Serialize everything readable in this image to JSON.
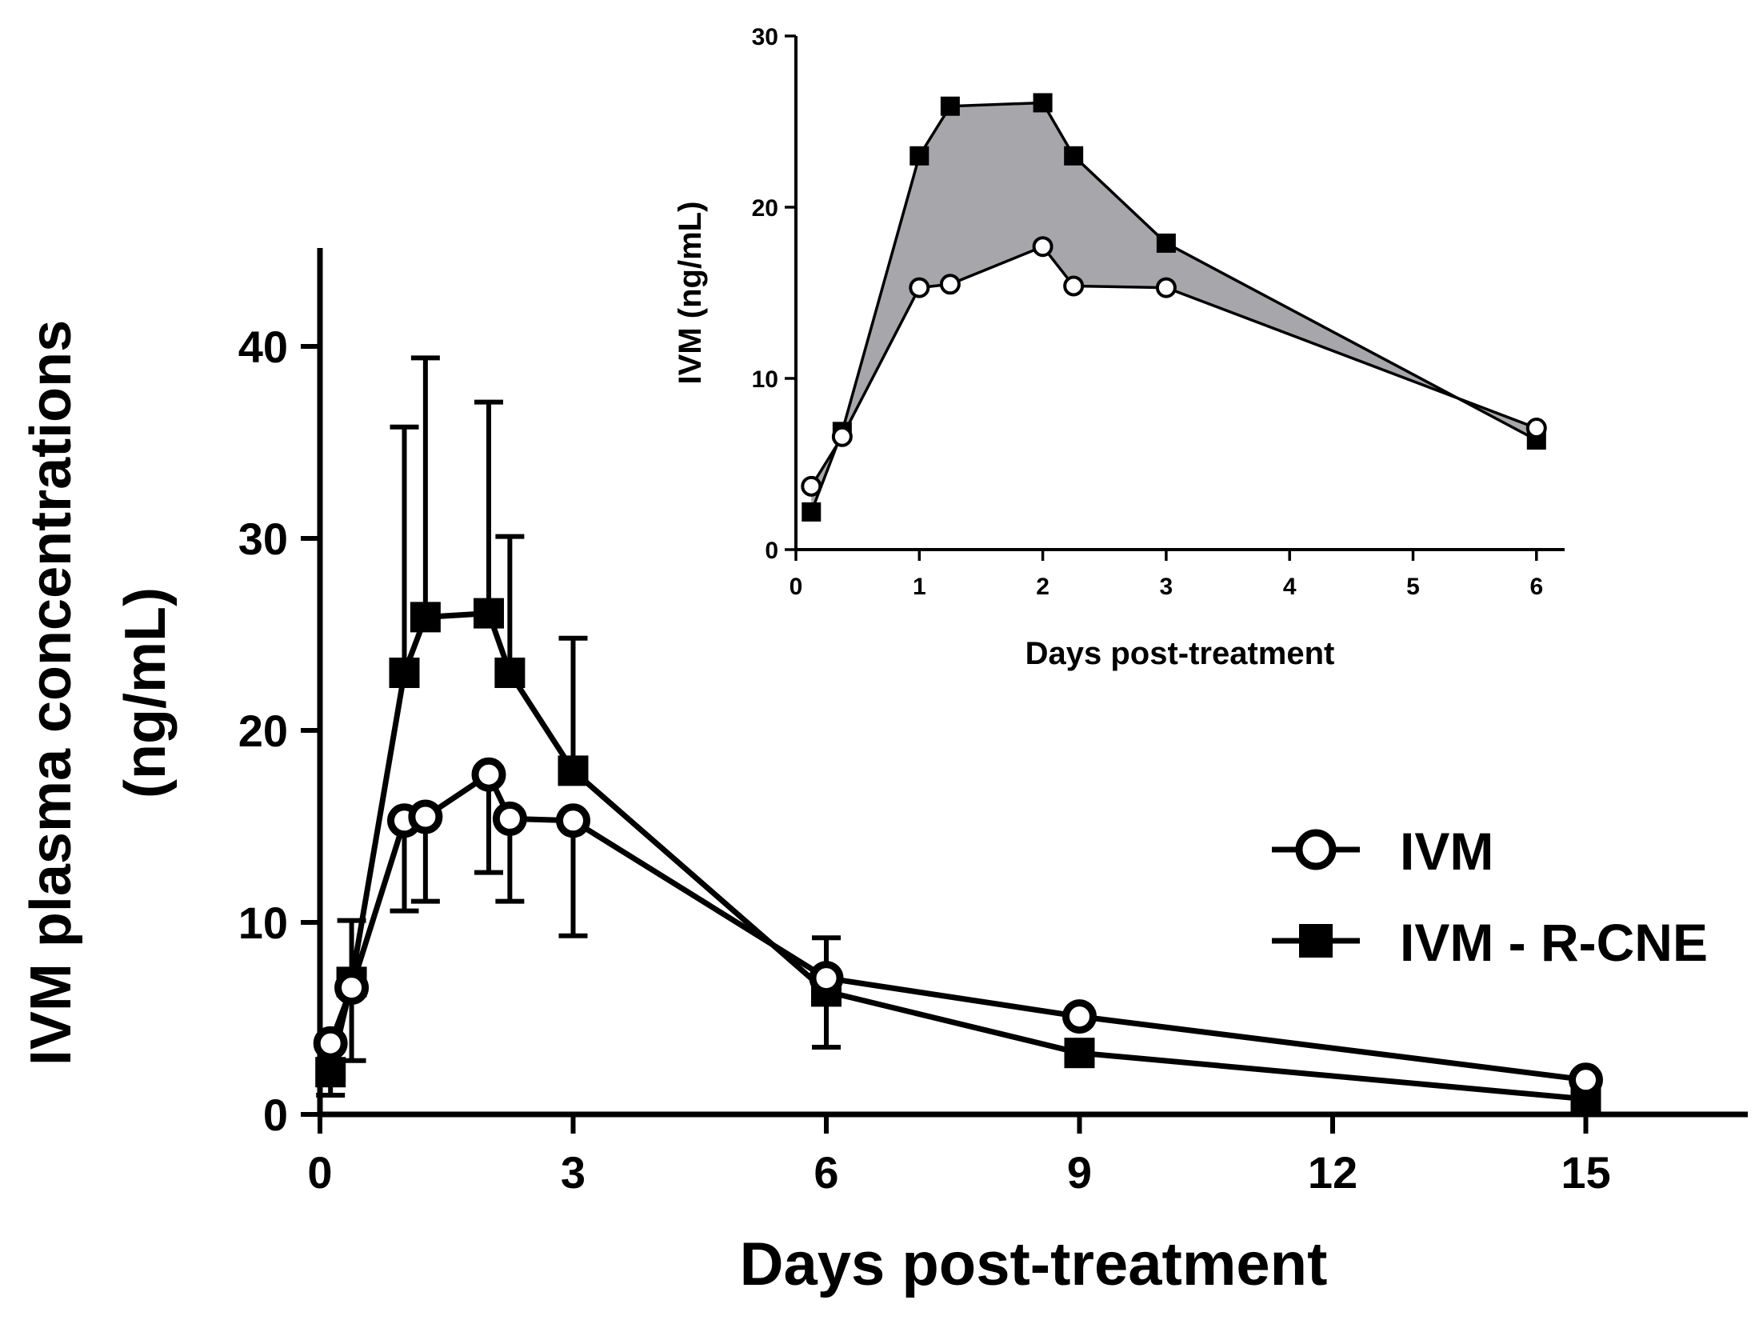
{
  "chart_data": [
    {
      "id": "main",
      "type": "line",
      "title": "",
      "xlabel": "Days post-treatment",
      "ylabel_lines": [
        "IVM plasma concentrations",
        "(ng/mL)"
      ],
      "xlim": [
        0,
        17
      ],
      "ylim": [
        0,
        45
      ],
      "xticks": [
        0,
        3,
        6,
        9,
        12,
        15
      ],
      "xtick_labels": [
        "0",
        "3",
        "6",
        "9",
        "12",
        "15"
      ],
      "yticks": [
        0,
        10,
        20,
        30,
        40
      ],
      "ytick_labels": [
        "0",
        "10",
        "20",
        "30",
        "40"
      ],
      "legend_position": "middle-right",
      "series": [
        {
          "name": "IVM",
          "marker": "open-circle",
          "x": [
            0.125,
            0.375,
            1,
            1.25,
            2,
            2.25,
            3,
            6,
            9,
            15
          ],
          "values": [
            3.7,
            6.6,
            15.3,
            15.5,
            17.7,
            15.4,
            15.3,
            7.1,
            5.1,
            1.8
          ],
          "error_upper": [
            null,
            null,
            null,
            null,
            null,
            null,
            null,
            null,
            null,
            null
          ],
          "error_lower": [
            null,
            null,
            10.6,
            11.1,
            12.6,
            11.1,
            9.3,
            null,
            null,
            null
          ]
        },
        {
          "name": "IVM - R-CNE",
          "marker": "filled-square",
          "x": [
            0.125,
            0.375,
            1,
            1.25,
            2,
            2.25,
            3,
            6,
            9,
            15
          ],
          "values": [
            2.2,
            6.9,
            23.0,
            25.9,
            26.1,
            23.0,
            17.9,
            6.4,
            3.2,
            0.8
          ],
          "error_upper": [
            3.4,
            10.1,
            35.8,
            39.4,
            37.1,
            30.1,
            24.8,
            9.2,
            null,
            null
          ],
          "error_lower": [
            1.0,
            2.8,
            null,
            null,
            null,
            null,
            null,
            3.5,
            null,
            null
          ]
        }
      ]
    },
    {
      "id": "inset",
      "type": "area",
      "title": "",
      "xlabel": "Days post-treatment",
      "ylabel": "IVM (ng/mL)",
      "xlim": [
        0,
        6.2
      ],
      "ylim": [
        0,
        30
      ],
      "xticks": [
        0,
        1,
        2,
        3,
        4,
        5,
        6
      ],
      "xtick_labels": [
        "0",
        "1",
        "2",
        "3",
        "4",
        "5",
        "6"
      ],
      "yticks": [
        0,
        10,
        20,
        30
      ],
      "ytick_labels": [
        "0",
        "10",
        "20",
        "30"
      ],
      "fill_between": "IVM and IVM - R-CNE",
      "fill_color": "#a7a7ab",
      "series": [
        {
          "name": "IVM",
          "marker": "open-circle",
          "x": [
            0.125,
            0.375,
            1,
            1.25,
            2,
            2.25,
            3,
            6
          ],
          "values": [
            3.7,
            6.6,
            15.3,
            15.5,
            17.7,
            15.4,
            15.3,
            7.1
          ]
        },
        {
          "name": "IVM - R-CNE",
          "marker": "filled-square",
          "x": [
            0.125,
            0.375,
            1,
            1.25,
            2,
            2.25,
            3,
            6
          ],
          "values": [
            2.2,
            6.9,
            23.0,
            25.9,
            26.1,
            23.0,
            17.9,
            6.4
          ]
        }
      ]
    }
  ]
}
